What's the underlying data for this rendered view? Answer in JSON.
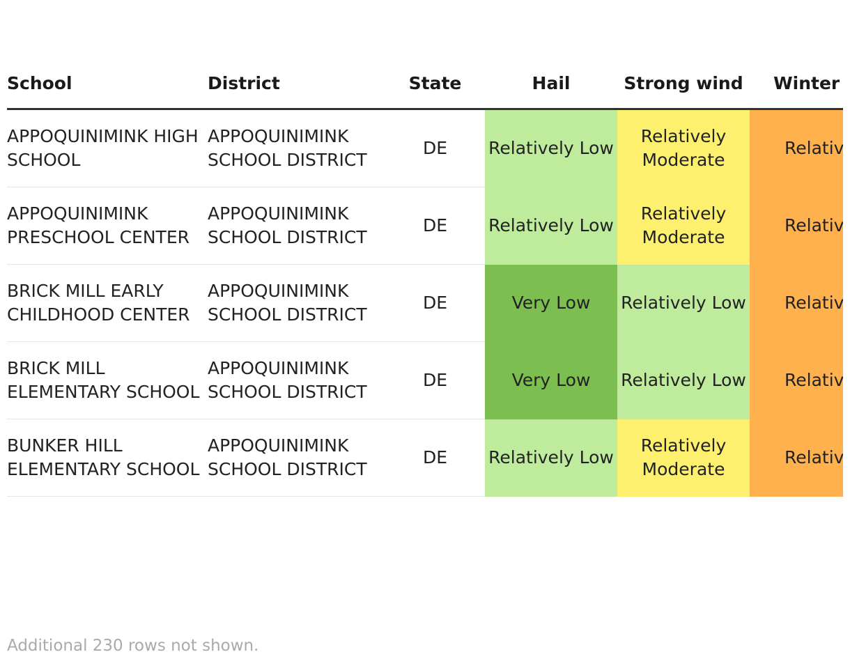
{
  "table": {
    "columns": [
      "School",
      "District",
      "State",
      "Hail",
      "Strong wind",
      "Winter weather"
    ],
    "rows": [
      [
        "APPOQUINIMINK HIGH SCHOOL",
        "APPOQUINIMINK SCHOOL DISTRICT",
        "DE",
        "Relatively Low",
        "Relatively Moderate",
        "Relatively High"
      ],
      [
        "APPOQUINIMINK PRESCHOOL CENTER",
        "APPOQUINIMINK SCHOOL DISTRICT",
        "DE",
        "Relatively Low",
        "Relatively Moderate",
        "Relatively High"
      ],
      [
        "BRICK MILL EARLY CHILDHOOD CENTER",
        "APPOQUINIMINK SCHOOL DISTRICT",
        "DE",
        "Very Low",
        "Relatively Low",
        "Relatively High"
      ],
      [
        "BRICK MILL ELEMENTARY SCHOOL",
        "APPOQUINIMINK SCHOOL DISTRICT",
        "DE",
        "Very Low",
        "Relatively Low",
        "Relatively High"
      ],
      [
        "BUNKER HILL ELEMENTARY SCHOOL",
        "APPOQUINIMINK SCHOOL DISTRICT",
        "DE",
        "Relatively Low",
        "Relatively Moderate",
        "Relatively High"
      ]
    ],
    "rating_colors": {
      "Very Low": "#7dbe51",
      "Relatively Low": "#bfec9c",
      "Relatively Moderate": "#fdf06e",
      "Relatively High": "#ffb14e"
    },
    "note": "Additional 230 rows not shown."
  }
}
